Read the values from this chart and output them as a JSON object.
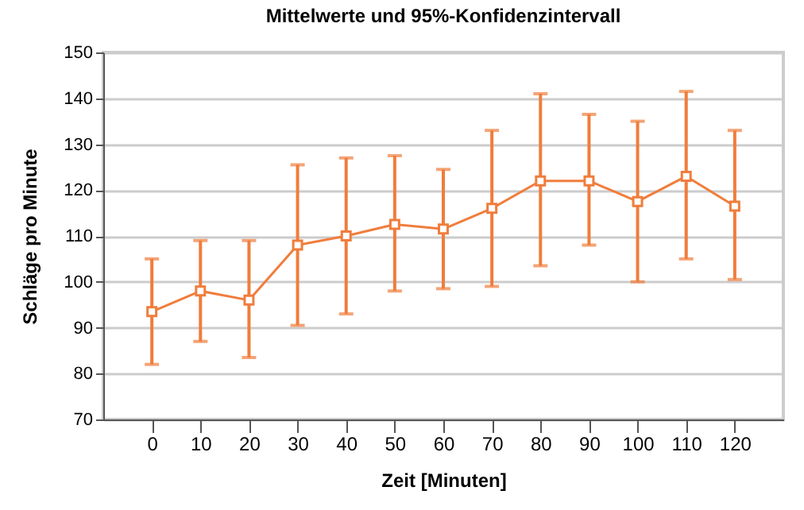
{
  "chart_data": {
    "type": "line",
    "title": "Mittelwerte und 95%-Konfidenzintervall",
    "xlabel": "Zeit [Minuten]",
    "ylabel": "Schläge pro Minute",
    "categories": [
      "0",
      "10",
      "20",
      "30",
      "40",
      "50",
      "60",
      "70",
      "80",
      "90",
      "100",
      "110",
      "120"
    ],
    "series": [
      {
        "color": "#f07d3c",
        "values": [
          93.5,
          98,
          96,
          108,
          110,
          112.5,
          111.5,
          116,
          122,
          122,
          117.5,
          123,
          116.5
        ],
        "errors": [
          [
            82,
            105
          ],
          [
            87,
            109
          ],
          [
            83.5,
            109
          ],
          [
            90.5,
            125.5
          ],
          [
            93,
            127
          ],
          [
            98,
            127.5
          ],
          [
            98.5,
            124.5
          ],
          [
            99,
            133
          ],
          [
            103.5,
            141
          ],
          [
            108,
            136.5
          ],
          [
            100,
            135
          ],
          [
            105,
            141.5
          ],
          [
            100.5,
            133
          ]
        ]
      }
    ],
    "ylim": [
      70,
      150
    ],
    "yticks": [
      70,
      80,
      90,
      100,
      110,
      120,
      130,
      140,
      150
    ],
    "grid": "y",
    "marker": "square",
    "line_style": "solid"
  }
}
